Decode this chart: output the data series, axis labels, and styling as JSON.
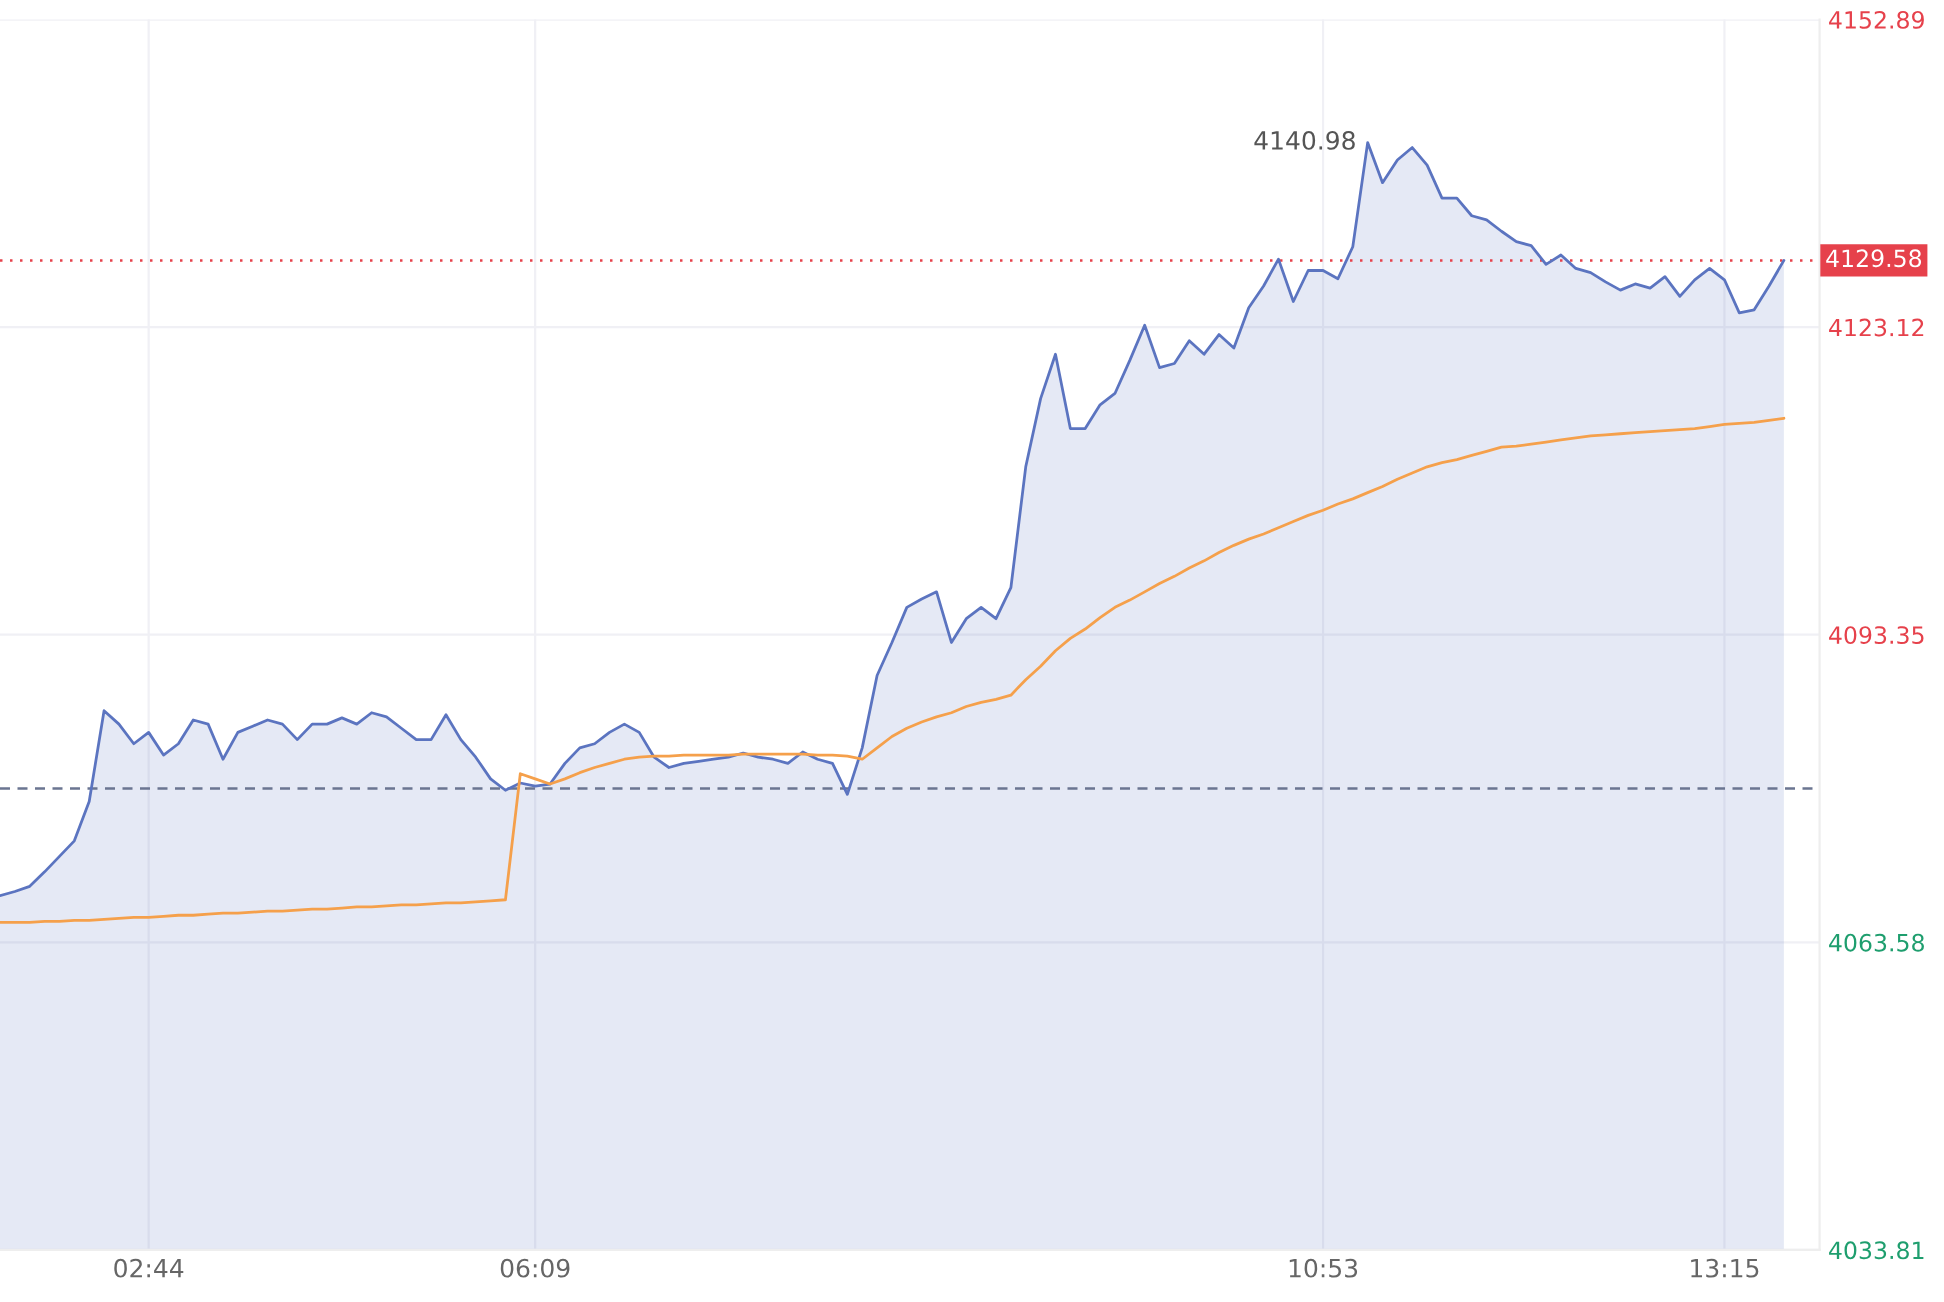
{
  "chart_data": {
    "type": "area",
    "categories": [
      null,
      null,
      null,
      null,
      null,
      null,
      null,
      null,
      null,
      null,
      "02:44",
      null,
      null,
      null,
      null,
      null,
      null,
      null,
      null,
      null,
      null,
      null,
      null,
      null,
      null,
      null,
      null,
      null,
      null,
      null,
      null,
      null,
      null,
      null,
      null,
      null,
      "06:09",
      null,
      null,
      null,
      null,
      null,
      null,
      null,
      null,
      null,
      null,
      null,
      null,
      null,
      null,
      null,
      null,
      null,
      null,
      null,
      null,
      null,
      null,
      null,
      null,
      null,
      null,
      null,
      null,
      null,
      null,
      null,
      null,
      null,
      null,
      null,
      null,
      null,
      null,
      null,
      null,
      null,
      null,
      null,
      null,
      null,
      null,
      null,
      null,
      null,
      null,
      null,
      null,
      "10:53",
      null,
      null,
      null,
      null,
      null,
      null,
      null,
      null,
      null,
      null,
      null,
      null,
      null,
      null,
      null,
      null,
      null,
      null,
      null,
      null,
      null,
      null,
      null,
      null,
      null,
      null,
      "13:15",
      null,
      null,
      null,
      null
    ],
    "series": [
      {
        "color": "#5b74c0",
        "values": [
          4068.1,
          4068.5,
          4069.0,
          4070.4,
          4071.9,
          4073.4,
          4077.2,
          4086.0,
          4084.7,
          4082.8,
          4083.9,
          4081.7,
          4082.8,
          4085.1,
          4084.7,
          4081.3,
          4083.9,
          4084.5,
          4085.1,
          4084.7,
          4083.2,
          4084.7,
          4084.7,
          4085.3,
          4084.7,
          4085.8,
          4085.4,
          4084.3,
          4083.2,
          4083.2,
          4085.6,
          4083.2,
          4081.5,
          4079.4,
          4078.3,
          4079.0,
          4078.7,
          4078.9,
          4080.9,
          4082.4,
          4082.8,
          4083.9,
          4084.7,
          4083.9,
          4081.5,
          4080.5,
          4080.9,
          4081.1,
          4081.3,
          4081.5,
          4081.9,
          4081.5,
          4081.3,
          4080.9,
          4082.0,
          4081.3,
          4080.9,
          4077.9,
          4082.4,
          4089.4,
          4092.6,
          4096.0,
          4096.8,
          4097.5,
          4092.6,
          4094.9,
          4096.0,
          4094.9,
          4097.9,
          4109.6,
          4116.2,
          4120.5,
          4113.3,
          4113.3,
          4115.6,
          4116.7,
          4119.9,
          4123.3,
          4119.2,
          4119.6,
          4121.8,
          4120.5,
          4122.4,
          4121.1,
          4125.0,
          4127.1,
          4129.7,
          4125.6,
          4128.6,
          4128.6,
          4127.8,
          4130.9,
          4140.98,
          4137.1,
          4139.3,
          4140.5,
          4138.8,
          4135.6,
          4135.6,
          4133.9,
          4133.5,
          4132.4,
          4131.4,
          4131.0,
          4129.2,
          4130.1,
          4128.8,
          4128.4,
          4127.5,
          4126.7,
          4127.3,
          4126.9,
          4128.0,
          4126.1,
          4127.7,
          4128.8,
          4127.7,
          4124.5,
          4124.8,
          4127.1,
          4129.58
        ]
      },
      {
        "type": "line",
        "color": "#f5a04b",
        "values": [
          4065.5,
          4065.5,
          4065.5,
          4065.6,
          4065.6,
          4065.7,
          4065.7,
          4065.8,
          4065.9,
          4066.0,
          4066.0,
          4066.1,
          4066.2,
          4066.2,
          4066.3,
          4066.4,
          4066.4,
          4066.5,
          4066.6,
          4066.6,
          4066.7,
          4066.8,
          4066.8,
          4066.9,
          4067.0,
          4067.0,
          4067.1,
          4067.2,
          4067.2,
          4067.3,
          4067.4,
          4067.4,
          4067.5,
          4067.6,
          4067.7,
          4079.9,
          4079.4,
          4078.9,
          4079.4,
          4080.0,
          4080.5,
          4080.9,
          4081.3,
          4081.5,
          4081.6,
          4081.6,
          4081.7,
          4081.7,
          4081.7,
          4081.7,
          4081.8,
          4081.8,
          4081.8,
          4081.8,
          4081.8,
          4081.7,
          4081.7,
          4081.6,
          4081.3,
          4082.4,
          4083.5,
          4084.3,
          4084.9,
          4085.4,
          4085.8,
          4086.4,
          4086.8,
          4087.1,
          4087.5,
          4089.0,
          4090.3,
          4091.8,
          4093.0,
          4093.9,
          4095.0,
          4096.0,
          4096.7,
          4097.5,
          4098.3,
          4099.0,
          4099.8,
          4100.5,
          4101.3,
          4102.0,
          4102.6,
          4103.1,
          4103.7,
          4104.3,
          4104.9,
          4105.4,
          4106.0,
          4106.5,
          4107.1,
          4107.7,
          4108.4,
          4109.0,
          4109.6,
          4110.0,
          4110.3,
          4110.7,
          4111.1,
          4111.5,
          4111.6,
          4111.8,
          4112.0,
          4112.2,
          4112.4,
          4112.6,
          4112.7,
          4112.8,
          4112.9,
          4113.0,
          4113.1,
          4113.2,
          4113.3,
          4113.5,
          4113.7,
          4113.8,
          4113.9,
          4114.1,
          4114.3
        ]
      }
    ],
    "ylim": [
      4033.81,
      4152.89
    ],
    "yticks": [
      4033.81,
      4063.58,
      4093.35,
      4123.12,
      4152.89
    ],
    "ref_lines": [
      {
        "axis": "y",
        "value": 4078.47,
        "color": "#6b7591",
        "line_style": "dashed"
      },
      {
        "axis": "y",
        "value": 4129.58,
        "label": "4129.58",
        "color": "#e6414b",
        "line_style": "dotted"
      }
    ],
    "annotations": [
      "4140.98"
    ],
    "grid": true
  }
}
